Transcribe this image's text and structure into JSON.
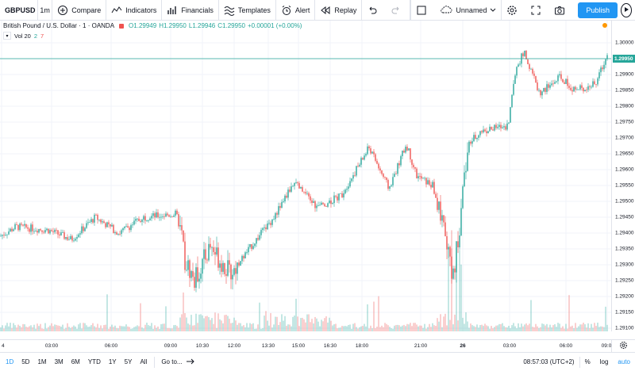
{
  "toolbar": {
    "symbol": "GBPUSD",
    "interval": "1m",
    "compare": "Compare",
    "indicators": "Indicators",
    "financials": "Financials",
    "templates": "Templates",
    "alert": "Alert",
    "replay": "Replay",
    "layout_name": "Unnamed",
    "publish": "Publish",
    "icons": [
      "plus-circle-icon",
      "indicators-icon",
      "financials-icon",
      "templates-icon",
      "alarm-clock-icon",
      "replay-icon",
      "undo-icon",
      "redo-icon",
      "square-icon",
      "cloud-icon",
      "chevron-down-icon",
      "gear-icon",
      "fullscreen-icon",
      "camera-icon",
      "play-icon"
    ]
  },
  "legend": {
    "title": "British Pound / U.S. Dollar · 1 · OANDA",
    "open": "O1.29949",
    "high": "H1.29950",
    "low": "L1.29946",
    "close": "C1.29950",
    "change": "+0.00001 (+0.00%)",
    "volume_label": "Vol 20",
    "volume_up": "2",
    "volume_down": "7"
  },
  "price_scale": {
    "ticks": [
      "1.30000",
      "1.29950",
      "1.29900",
      "1.29850",
      "1.29800",
      "1.29750",
      "1.29700",
      "1.29650",
      "1.29600",
      "1.29550",
      "1.29500",
      "1.29450",
      "1.29400",
      "1.29350",
      "1.29300",
      "1.29250",
      "1.29200",
      "1.29150",
      "1.29100"
    ],
    "last_price": "1.29950",
    "colors": {
      "up": "#26a69a",
      "down": "#ef5350",
      "last_line": "#26a69a"
    }
  },
  "time_scale": {
    "ticks": [
      "4",
      "03:00",
      "06:00",
      "09:00",
      "10:30",
      "12:00",
      "13:30",
      "15:00",
      "16:30",
      "18:00",
      "21:00",
      "26",
      "03:00",
      "06:00",
      "09:0"
    ]
  },
  "chart_data": {
    "type": "candlestick",
    "symbol": "GBPUSD",
    "ylim": [
      1.291,
      1.3005
    ],
    "grid": true,
    "waypoints": [
      {
        "x": 0,
        "close": 1.2939
      },
      {
        "x": 20,
        "close": 1.2942
      },
      {
        "x": 60,
        "close": 1.2941
      },
      {
        "x": 90,
        "close": 1.2938
      },
      {
        "x": 120,
        "close": 1.2945
      },
      {
        "x": 150,
        "close": 1.294
      },
      {
        "x": 180,
        "close": 1.2945
      },
      {
        "x": 222,
        "close": 1.2946
      },
      {
        "x": 228,
        "close": 1.294
      },
      {
        "x": 232,
        "close": 1.2932
      },
      {
        "x": 245,
        "close": 1.2925
      },
      {
        "x": 265,
        "close": 1.2936
      },
      {
        "x": 290,
        "close": 1.2927
      },
      {
        "x": 320,
        "close": 1.2937
      },
      {
        "x": 345,
        "close": 1.2945
      },
      {
        "x": 370,
        "close": 1.2956
      },
      {
        "x": 400,
        "close": 1.2948
      },
      {
        "x": 430,
        "close": 1.2952
      },
      {
        "x": 465,
        "close": 1.2967
      },
      {
        "x": 490,
        "close": 1.2954
      },
      {
        "x": 512,
        "close": 1.2968
      },
      {
        "x": 525,
        "close": 1.2958
      },
      {
        "x": 545,
        "close": 1.2955
      },
      {
        "x": 560,
        "close": 1.294
      },
      {
        "x": 570,
        "close": 1.2925
      },
      {
        "x": 578,
        "close": 1.294
      },
      {
        "x": 590,
        "close": 1.2968
      },
      {
        "x": 605,
        "close": 1.2972
      },
      {
        "x": 640,
        "close": 1.2974
      },
      {
        "x": 650,
        "close": 1.2992
      },
      {
        "x": 660,
        "close": 1.2997
      },
      {
        "x": 680,
        "close": 1.2984
      },
      {
        "x": 705,
        "close": 1.2989
      },
      {
        "x": 725,
        "close": 1.2985
      },
      {
        "x": 750,
        "close": 1.2987
      },
      {
        "x": 765,
        "close": 1.2996
      }
    ]
  },
  "bottombar": {
    "ranges": [
      "1D",
      "5D",
      "1M",
      "3M",
      "6M",
      "YTD",
      "1Y",
      "5Y",
      "All"
    ],
    "goto": "Go to...",
    "clock": "08:57:03 (UTC+2)",
    "percent": "%",
    "log": "log",
    "auto": "auto"
  }
}
